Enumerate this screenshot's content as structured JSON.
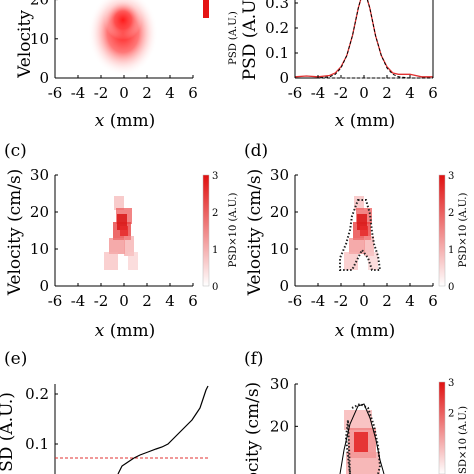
{
  "figure": {
    "panels": [
      {
        "id": "a",
        "label": "",
        "xlabel_var": "x",
        "xlabel_unit": " (mm)",
        "ylabel": "Velocity",
        "colorbar_label": "PSD (A.U.)"
      },
      {
        "id": "b",
        "label": "",
        "xlabel_var": "x",
        "xlabel_unit": " (mm)",
        "ylabel": "PSD (A.U."
      },
      {
        "id": "c",
        "label": "(c)",
        "xlabel_var": "x",
        "xlabel_unit": " (mm)",
        "ylabel": "Velocity (cm/s)",
        "colorbar_label": "PSD×10 (A.U.)"
      },
      {
        "id": "d",
        "label": "(d)",
        "xlabel_var": "x",
        "xlabel_unit": " (mm)",
        "ylabel": "Velocity (cm/s)",
        "colorbar_label": "PSD×10 (A.U.)"
      },
      {
        "id": "e",
        "label": "(e)",
        "ylabel": "SD (A.U.)"
      },
      {
        "id": "f",
        "label": "(f)",
        "ylabel": "ocity (cm/s)",
        "colorbar_label": "SD×10 (A.U.)"
      }
    ]
  },
  "chart_data": [
    {
      "panel": "a",
      "type": "heatmap",
      "x_ticks": [
        "-6",
        "-4",
        "-2",
        "0",
        "2",
        "4",
        "6"
      ],
      "y_ticks": [
        "0",
        "10",
        "20"
      ],
      "xlim": [
        -6,
        6
      ],
      "ylim": [
        0,
        25
      ],
      "blob": {
        "cx": 0,
        "cy": 18,
        "sx": 1.4,
        "sy": 9,
        "peak": 1.0
      }
    },
    {
      "panel": "b",
      "type": "line",
      "x_ticks": [
        "-6",
        "-4",
        "-2",
        "0",
        "2",
        "4",
        "6"
      ],
      "y_ticks": [
        "0",
        "0.1",
        "0.2",
        "0.3"
      ],
      "xlim": [
        -6,
        6
      ],
      "ylim": [
        0,
        0.36
      ],
      "series": [
        {
          "values_x": [
            -6,
            -5,
            -4,
            -3,
            -2.5,
            -2,
            -1.5,
            -1,
            -0.5,
            0,
            0.5,
            1,
            1.5,
            2,
            2.5,
            3,
            4,
            5,
            6
          ],
          "values_y": [
            0.005,
            0.008,
            0.005,
            0.01,
            0.02,
            0.045,
            0.09,
            0.17,
            0.28,
            0.36,
            0.28,
            0.17,
            0.09,
            0.045,
            0.02,
            0.015,
            0.015,
            0.005,
            0.005
          ],
          "color": "#e03030"
        },
        {
          "values_x": [
            -6,
            -5,
            -4,
            -3,
            -2.5,
            -2,
            -1.5,
            -1,
            -0.5,
            0,
            0.5,
            1,
            1.5,
            2,
            2.5,
            3,
            4,
            5,
            6
          ],
          "values_y": [
            0,
            0,
            0,
            0.005,
            0.015,
            0.04,
            0.09,
            0.17,
            0.28,
            0.36,
            0.28,
            0.17,
            0.09,
            0.04,
            0.015,
            0.005,
            0,
            0,
            0
          ],
          "color": "#000000"
        }
      ]
    },
    {
      "panel": "c",
      "type": "heatmap",
      "x_ticks": [
        "-6",
        "-4",
        "-2",
        "0",
        "2",
        "4",
        "6"
      ],
      "y_ticks": [
        "0",
        "10",
        "20",
        "30"
      ],
      "xlim": [
        -6,
        6
      ],
      "ylim": [
        0,
        30
      ],
      "colorbar_ticks": [
        "0",
        "1",
        "2",
        "3"
      ]
    },
    {
      "panel": "d",
      "type": "heatmap",
      "x_ticks": [
        "-6",
        "-4",
        "-2",
        "0",
        "2",
        "4",
        "6"
      ],
      "y_ticks": [
        "0",
        "10",
        "20",
        "30"
      ],
      "xlim": [
        -6,
        6
      ],
      "ylim": [
        0,
        30
      ],
      "colorbar_ticks": [
        "0",
        "1",
        "2",
        "3"
      ]
    },
    {
      "panel": "e",
      "type": "line",
      "y_ticks": [
        "0.1",
        "0.2"
      ],
      "ylim": [
        0.04,
        0.22
      ],
      "threshold": 0.075
    },
    {
      "panel": "f",
      "type": "heatmap",
      "y_ticks": [
        "20",
        "30"
      ],
      "ylim": [
        0,
        30
      ],
      "colorbar_ticks": [
        "2",
        "3"
      ]
    }
  ]
}
